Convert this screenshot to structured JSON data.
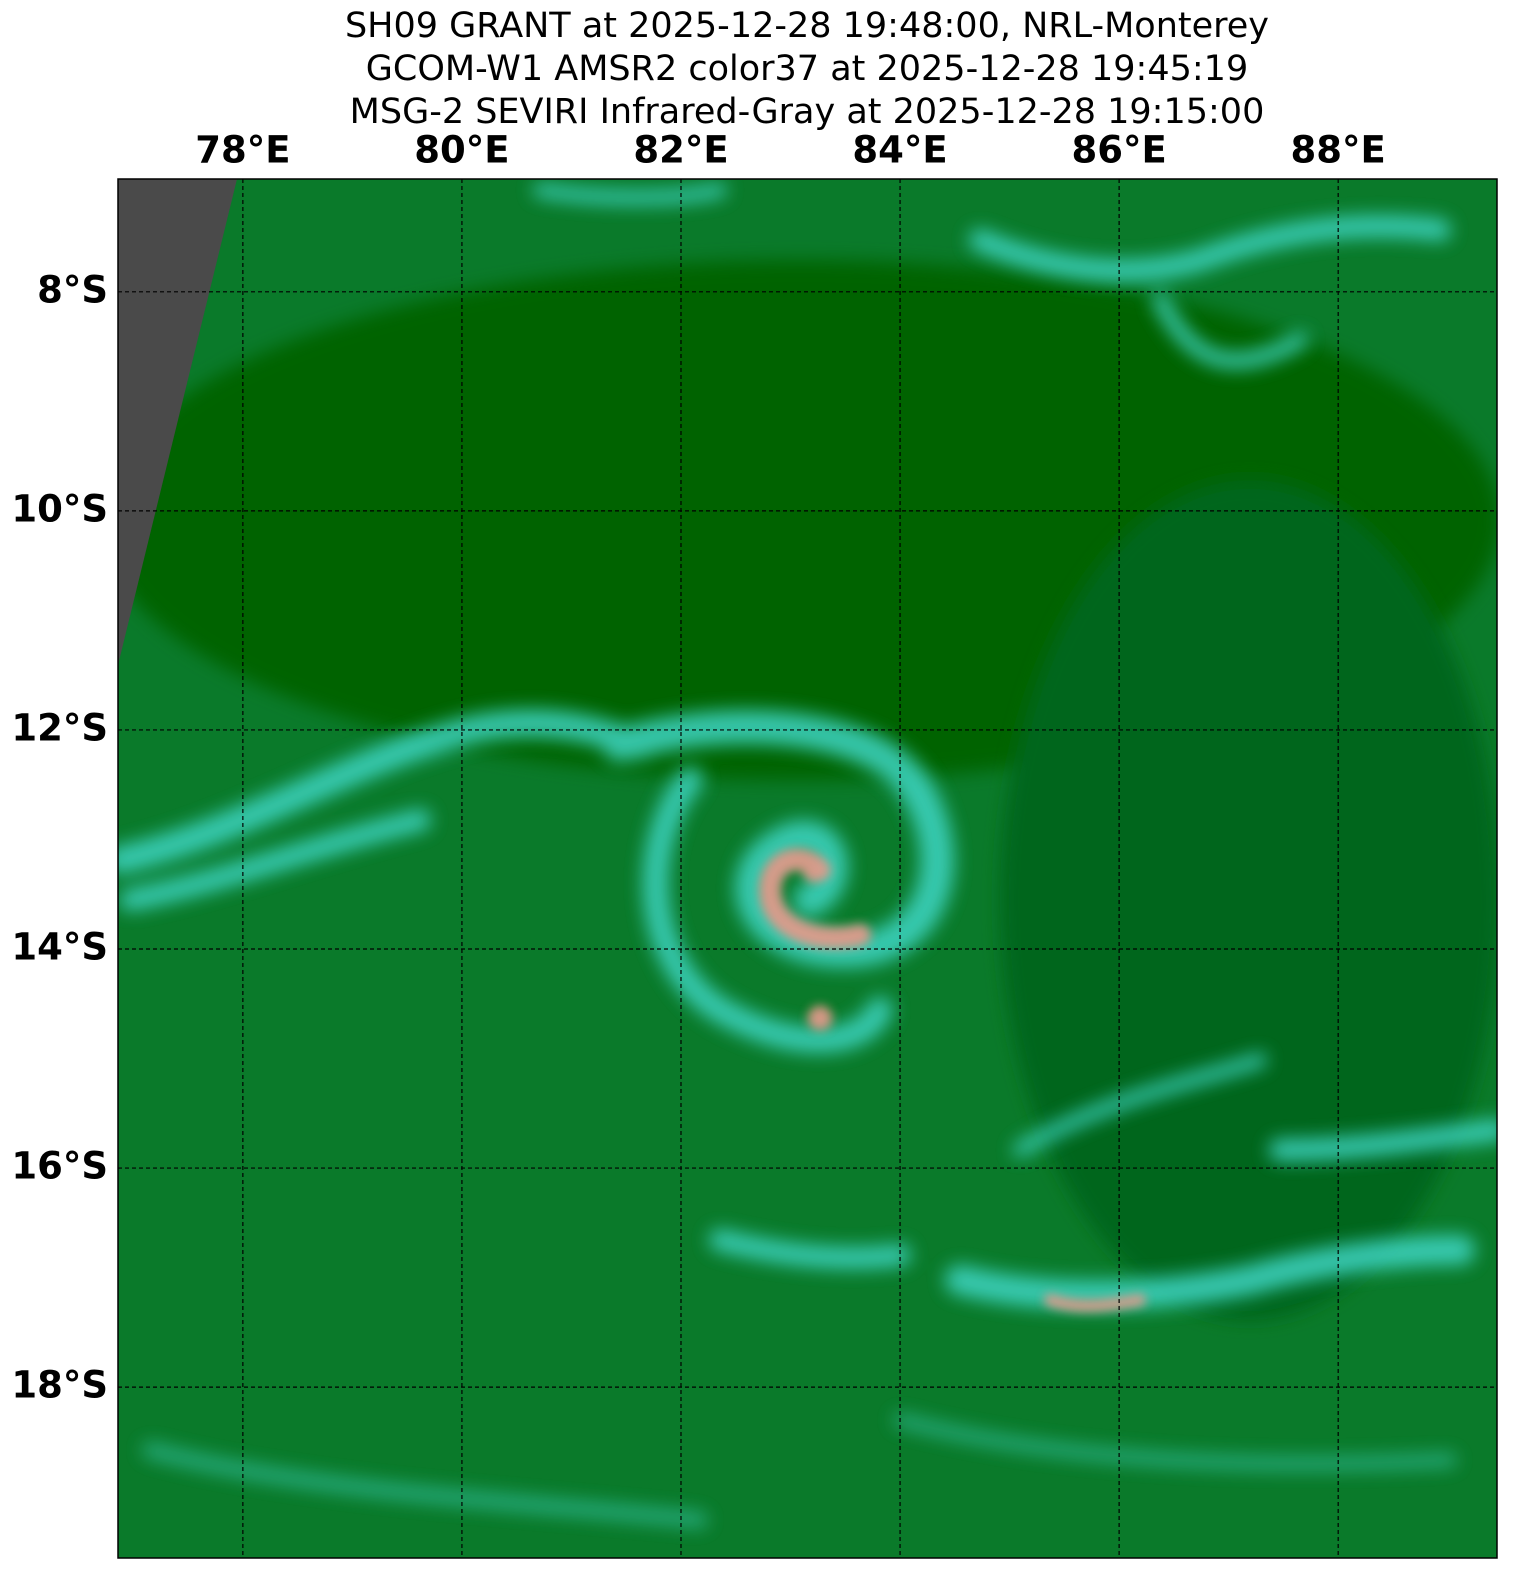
{
  "chart_data": {
    "type": "map",
    "title": [
      "SH09 GRANT at 2025-12-28 19:48:00, NRL-Monterey",
      "GCOM-W1 AMSR2 color37 at 2025-12-28 19:45:19",
      "MSG-2 SEVIRI Infrared-Gray at 2025-12-28 19:15:00"
    ],
    "xlim": [
      76.86,
      89.45
    ],
    "ylim": [
      -19.56,
      -6.97
    ],
    "xticks": [
      {
        "value": 78,
        "label": "78°E"
      },
      {
        "value": 80,
        "label": "80°E"
      },
      {
        "value": 82,
        "label": "82°E"
      },
      {
        "value": 84,
        "label": "84°E"
      },
      {
        "value": 86,
        "label": "86°E"
      },
      {
        "value": 88,
        "label": "88°E"
      }
    ],
    "yticks": [
      {
        "value": -8,
        "label": "8°S"
      },
      {
        "value": -10,
        "label": "10°S"
      },
      {
        "value": -12,
        "label": "12°S"
      },
      {
        "value": -14,
        "label": "14°S"
      },
      {
        "value": -16,
        "label": "16°S"
      },
      {
        "value": -18,
        "label": "18°S"
      }
    ],
    "grid": true
  }
}
